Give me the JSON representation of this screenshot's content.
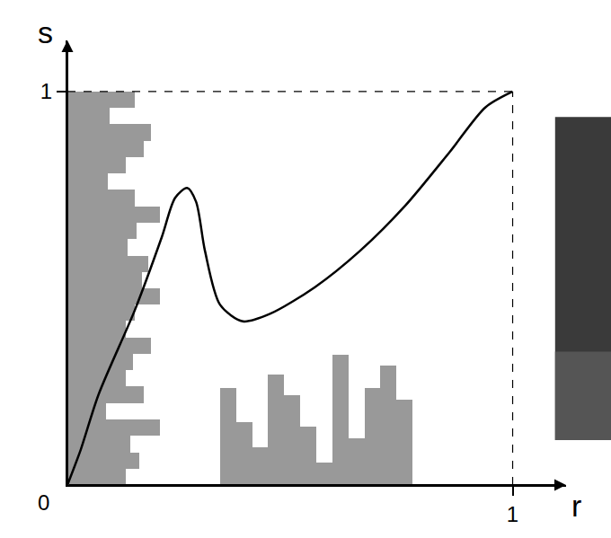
{
  "chart_data": {
    "type": "line",
    "x_label": "r",
    "y_label": "s",
    "origin_label": "0",
    "x": [
      0,
      0.03,
      0.07,
      0.152,
      0.212,
      0.242,
      0.269,
      0.289,
      0.309,
      0.343,
      0.394,
      0.455,
      0.556,
      0.657,
      0.758,
      0.859,
      0.939,
      1.0
    ],
    "values": [
      0,
      0.09,
      0.23,
      0.446,
      0.63,
      0.73,
      0.755,
      0.72,
      0.595,
      0.458,
      0.416,
      0.435,
      0.503,
      0.595,
      0.709,
      0.847,
      0.96,
      1.0
    ],
    "color": "#000000",
    "xlim": [
      0,
      1.12
    ],
    "ylim": [
      0,
      1.13
    ],
    "xticks": [
      1
    ],
    "yticks": [
      1
    ],
    "grid": false,
    "histograms": [
      {
        "orientation": "horizontal",
        "color": "#999999",
        "bins": [
          0,
          0.042,
          0.083,
          0.125,
          0.167,
          0.208,
          0.25,
          0.292,
          0.333,
          0.375,
          0.417,
          0.458,
          0.5,
          0.542,
          0.583,
          0.625,
          0.667,
          0.708,
          0.75,
          0.792,
          0.833,
          0.875,
          0.917,
          0.958,
          1.0
        ],
        "counts": [
          0.131,
          0.162,
          0.141,
          0.208,
          0.087,
          0.172,
          0.131,
          0.147,
          0.188,
          0.131,
          0.152,
          0.208,
          0.168,
          0.182,
          0.135,
          0.156,
          0.208,
          0.152,
          0.091,
          0.131,
          0.172,
          0.188,
          0.095,
          0.152
        ]
      },
      {
        "color": "#999999",
        "bins": [
          0.343,
          0.379,
          0.415,
          0.451,
          0.487,
          0.523,
          0.559,
          0.595,
          0.631,
          0.667,
          0.703,
          0.739,
          0.775
        ],
        "counts": [
          0.247,
          0.16,
          0.096,
          0.281,
          0.229,
          0.149,
          0.057,
          0.332,
          0.119,
          0.247,
          0.304,
          0.217
        ]
      }
    ]
  }
}
